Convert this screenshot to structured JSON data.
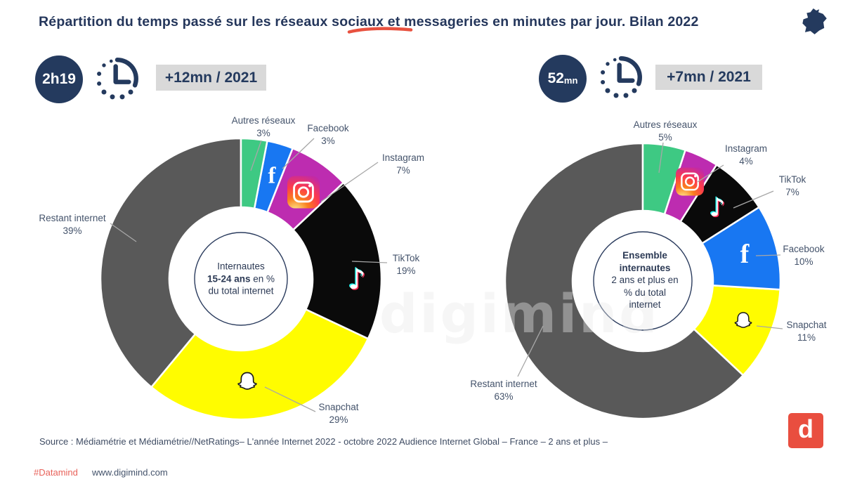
{
  "header": {
    "title": "Répartition du temps passé sur les réseaux sociaux et messageries en minutes par jour. Bilan 2022",
    "accent_color": "#e8513f",
    "navy_color": "#243a5e"
  },
  "icons": {
    "france": "france-map-icon",
    "clock": "dotted-clock-icon",
    "facebook": "facebook-f-icon",
    "instagram": "instagram-camera-icon",
    "tiktok": "tiktok-note-icon",
    "snapchat": "snapchat-ghost-icon",
    "logo": "digimind-logo"
  },
  "summary_badges": [
    {
      "value": "2h19",
      "unit": "",
      "delta": "+12mn / 2021"
    },
    {
      "value": "52",
      "unit": "mn",
      "delta": "+7mn / 2021"
    }
  ],
  "chart_data": [
    {
      "type": "pie",
      "donut": true,
      "title": "Internautes 15-24 ans en % du total internet",
      "labels": [
        "Autres réseaux",
        "Facebook",
        "Instagram",
        "TikTok",
        "Snapchat",
        "Restant internet"
      ],
      "values": [
        3,
        3,
        7,
        19,
        29,
        39
      ],
      "pct": [
        "3%",
        "3%",
        "7%",
        "19%",
        "29%",
        "39%"
      ],
      "colors": [
        "#3ec983",
        "#1877f2",
        "#bd2cb0",
        "#0a0a0a",
        "#fffc00",
        "#595959"
      ],
      "start_angle_deg": 0,
      "direction": "clockwise",
      "center": {
        "line1": "Internautes",
        "bold": "15-24 ans",
        "rest": " en %",
        "line3": "du total internet"
      }
    },
    {
      "type": "pie",
      "donut": true,
      "title": "Ensemble internautes 2 ans et plus en % du total internet",
      "labels": [
        "Autres réseaux",
        "Instagram",
        "TikTok",
        "Facebook",
        "Snapchat",
        "Restant internet"
      ],
      "values": [
        5,
        4,
        7,
        10,
        11,
        63
      ],
      "pct": [
        "5%",
        "4%",
        "7%",
        "10%",
        "11%",
        "63%"
      ],
      "colors": [
        "#3ec983",
        "#bd2cb0",
        "#0a0a0a",
        "#1877f2",
        "#fffc00",
        "#595959"
      ],
      "start_angle_deg": 0,
      "direction": "clockwise",
      "center": {
        "bold1": "Ensemble",
        "bold2": "internautes",
        "line3": "2 ans et plus en",
        "line4": "% du total",
        "line5": "internet"
      }
    }
  ],
  "watermark": "digimind",
  "source": "Source : Médiamétrie et Médiamétrie//NetRatings– L'année Internet 2022 - octobre 2022 Audience Internet Global – France – 2 ans et plus –",
  "footer": {
    "hashtag": "#Datamind",
    "url": "www.digimind.com"
  },
  "glyphs": {
    "facebook": "f",
    "tiktok": "♪",
    "logo_letter": "d"
  }
}
